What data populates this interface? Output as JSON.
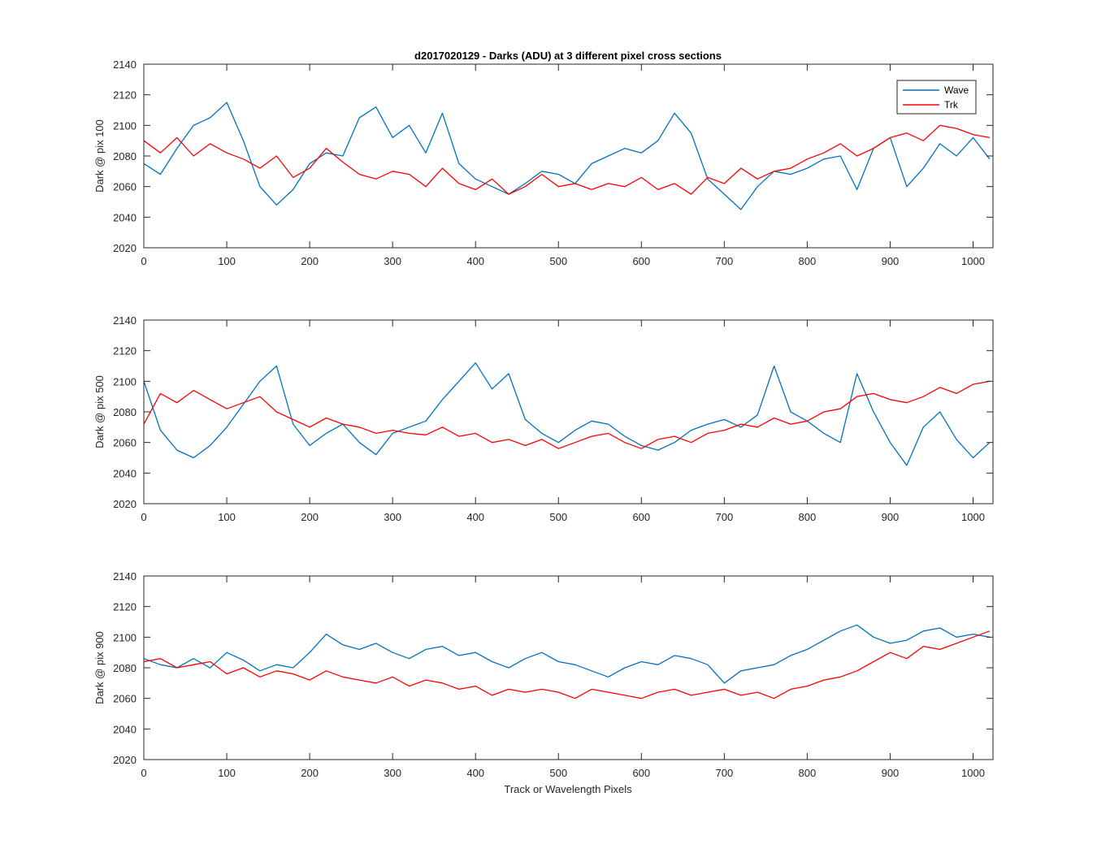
{
  "figure": {
    "title": "d2017020129 - Darks (ADU) at 3 different pixel cross sections",
    "xlabel": "Track or Wavelength Pixels"
  },
  "legend": {
    "placement": "top-right of first axes",
    "entries": [
      "Wave",
      "Trk"
    ]
  },
  "colors": {
    "Wave": "#0072BD",
    "Trk": "#FF0000"
  },
  "chart_data": [
    {
      "type": "line",
      "title": "d2017020129 - Darks (ADU) at 3 different pixel cross sections",
      "xlabel": "",
      "ylabel": "Dark @ pix 100",
      "xlim": [
        0,
        1024
      ],
      "ylim": [
        2020,
        2140
      ],
      "xticks": [
        0,
        100,
        200,
        300,
        400,
        500,
        600,
        700,
        800,
        900,
        1000
      ],
      "yticks": [
        2020,
        2040,
        2060,
        2080,
        2100,
        2120,
        2140
      ],
      "grid": false,
      "legend": "top-right",
      "x": [
        0,
        20,
        40,
        60,
        80,
        100,
        120,
        140,
        160,
        180,
        200,
        220,
        240,
        260,
        280,
        300,
        320,
        340,
        360,
        380,
        400,
        420,
        440,
        460,
        480,
        500,
        520,
        540,
        560,
        580,
        600,
        620,
        640,
        660,
        680,
        700,
        720,
        740,
        760,
        780,
        800,
        820,
        840,
        860,
        880,
        900,
        920,
        940,
        960,
        980,
        1000,
        1020
      ],
      "series": [
        {
          "name": "Wave",
          "values": [
            2075,
            2068,
            2085,
            2100,
            2105,
            2115,
            2090,
            2060,
            2048,
            2058,
            2075,
            2082,
            2080,
            2105,
            2112,
            2092,
            2100,
            2082,
            2108,
            2075,
            2065,
            2060,
            2055,
            2062,
            2070,
            2068,
            2062,
            2075,
            2080,
            2085,
            2082,
            2090,
            2108,
            2095,
            2065,
            2055,
            2045,
            2060,
            2070,
            2068,
            2072,
            2078,
            2080,
            2058,
            2085,
            2092,
            2060,
            2072,
            2088,
            2080,
            2092,
            2078
          ]
        },
        {
          "name": "Trk",
          "values": [
            2090,
            2082,
            2092,
            2080,
            2088,
            2082,
            2078,
            2072,
            2080,
            2066,
            2072,
            2085,
            2076,
            2068,
            2065,
            2070,
            2068,
            2060,
            2072,
            2062,
            2058,
            2065,
            2055,
            2060,
            2068,
            2060,
            2062,
            2058,
            2062,
            2060,
            2066,
            2058,
            2062,
            2055,
            2066,
            2062,
            2072,
            2065,
            2070,
            2072,
            2078,
            2082,
            2088,
            2080,
            2085,
            2092,
            2095,
            2090,
            2100,
            2098,
            2094,
            2092
          ]
        }
      ]
    },
    {
      "type": "line",
      "xlabel": "",
      "ylabel": "Dark @ pix 500",
      "xlim": [
        0,
        1024
      ],
      "ylim": [
        2020,
        2140
      ],
      "xticks": [
        0,
        100,
        200,
        300,
        400,
        500,
        600,
        700,
        800,
        900,
        1000
      ],
      "yticks": [
        2020,
        2040,
        2060,
        2080,
        2100,
        2120,
        2140
      ],
      "grid": false,
      "x": [
        0,
        20,
        40,
        60,
        80,
        100,
        120,
        140,
        160,
        180,
        200,
        220,
        240,
        260,
        280,
        300,
        320,
        340,
        360,
        380,
        400,
        420,
        440,
        460,
        480,
        500,
        520,
        540,
        560,
        580,
        600,
        620,
        640,
        660,
        680,
        700,
        720,
        740,
        760,
        780,
        800,
        820,
        840,
        860,
        880,
        900,
        920,
        940,
        960,
        980,
        1000,
        1020
      ],
      "series": [
        {
          "name": "Wave",
          "values": [
            2100,
            2068,
            2055,
            2050,
            2058,
            2070,
            2085,
            2100,
            2110,
            2072,
            2058,
            2066,
            2072,
            2060,
            2052,
            2066,
            2070,
            2074,
            2088,
            2100,
            2112,
            2095,
            2105,
            2075,
            2066,
            2060,
            2068,
            2074,
            2072,
            2064,
            2058,
            2055,
            2060,
            2068,
            2072,
            2075,
            2070,
            2078,
            2110,
            2080,
            2074,
            2066,
            2060,
            2105,
            2080,
            2060,
            2045,
            2070,
            2080,
            2062,
            2050,
            2060
          ]
        },
        {
          "name": "Trk",
          "values": [
            2072,
            2092,
            2086,
            2094,
            2088,
            2082,
            2086,
            2090,
            2080,
            2075,
            2070,
            2076,
            2072,
            2070,
            2066,
            2068,
            2066,
            2065,
            2070,
            2064,
            2066,
            2060,
            2062,
            2058,
            2062,
            2056,
            2060,
            2064,
            2066,
            2060,
            2056,
            2062,
            2064,
            2060,
            2066,
            2068,
            2072,
            2070,
            2076,
            2072,
            2074,
            2080,
            2082,
            2090,
            2092,
            2088,
            2086,
            2090,
            2096,
            2092,
            2098,
            2100
          ]
        }
      ]
    },
    {
      "type": "line",
      "xlabel": "Track or Wavelength Pixels",
      "ylabel": "Dark @ pix 900",
      "xlim": [
        0,
        1024
      ],
      "ylim": [
        2020,
        2140
      ],
      "xticks": [
        0,
        100,
        200,
        300,
        400,
        500,
        600,
        700,
        800,
        900,
        1000
      ],
      "yticks": [
        2020,
        2040,
        2060,
        2080,
        2100,
        2120,
        2140
      ],
      "grid": false,
      "x": [
        0,
        20,
        40,
        60,
        80,
        100,
        120,
        140,
        160,
        180,
        200,
        220,
        240,
        260,
        280,
        300,
        320,
        340,
        360,
        380,
        400,
        420,
        440,
        460,
        480,
        500,
        520,
        540,
        560,
        580,
        600,
        620,
        640,
        660,
        680,
        700,
        720,
        740,
        760,
        780,
        800,
        820,
        840,
        860,
        880,
        900,
        920,
        940,
        960,
        980,
        1000,
        1020
      ],
      "series": [
        {
          "name": "Wave",
          "values": [
            2086,
            2082,
            2080,
            2086,
            2080,
            2090,
            2085,
            2078,
            2082,
            2080,
            2090,
            2102,
            2095,
            2092,
            2096,
            2090,
            2086,
            2092,
            2094,
            2088,
            2090,
            2084,
            2080,
            2086,
            2090,
            2084,
            2082,
            2078,
            2074,
            2080,
            2084,
            2082,
            2088,
            2086,
            2082,
            2070,
            2078,
            2080,
            2082,
            2088,
            2092,
            2098,
            2104,
            2108,
            2100,
            2096,
            2098,
            2104,
            2106,
            2100,
            2102,
            2100
          ]
        },
        {
          "name": "Trk",
          "values": [
            2084,
            2086,
            2080,
            2082,
            2084,
            2076,
            2080,
            2074,
            2078,
            2076,
            2072,
            2078,
            2074,
            2072,
            2070,
            2074,
            2068,
            2072,
            2070,
            2066,
            2068,
            2062,
            2066,
            2064,
            2066,
            2064,
            2060,
            2066,
            2064,
            2062,
            2060,
            2064,
            2066,
            2062,
            2064,
            2066,
            2062,
            2064,
            2060,
            2066,
            2068,
            2072,
            2074,
            2078,
            2084,
            2090,
            2086,
            2094,
            2092,
            2096,
            2100,
            2104
          ]
        }
      ]
    }
  ]
}
